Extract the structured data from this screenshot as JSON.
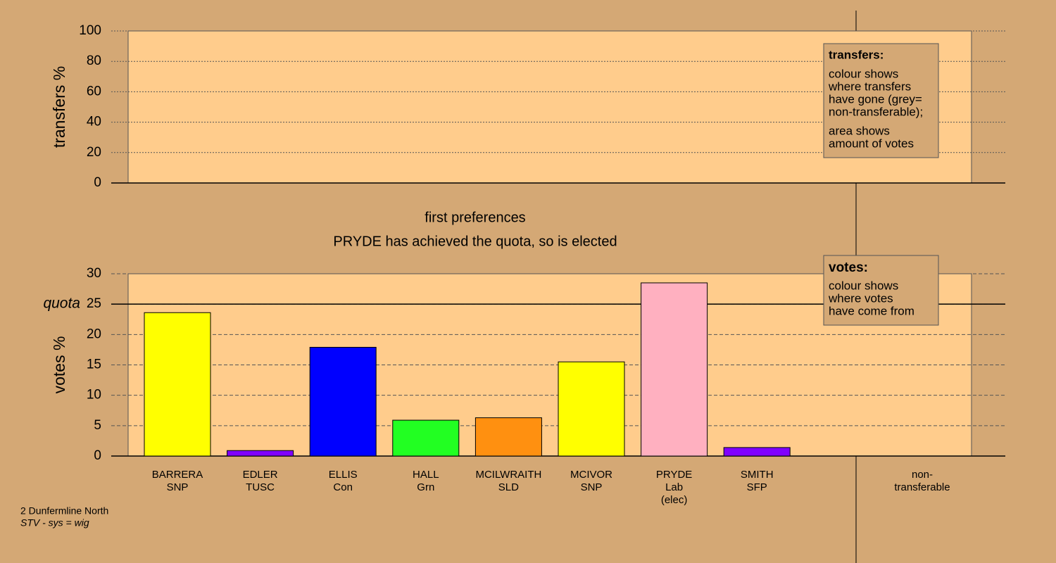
{
  "chart_data": [
    {
      "type": "bar",
      "ylabel": "transfers %",
      "ylim": [
        0,
        100
      ],
      "yticks": [
        0,
        20,
        40,
        60,
        80,
        100
      ],
      "grid": true,
      "legend": {
        "title": "transfers:",
        "paragraphs": [
          [
            "colour shows",
            "where transfers",
            "have gone (grey=",
            "non-transferable);"
          ],
          [
            "area shows",
            "amount of votes"
          ]
        ]
      }
    },
    {
      "type": "bar",
      "title": "first preferences",
      "subtitle": "PRYDE has achieved the quota, so is elected",
      "ylabel": "votes %",
      "ylim": [
        0,
        30
      ],
      "yticks": [
        0,
        5,
        10,
        15,
        20,
        25,
        30
      ],
      "grid": true,
      "quota": {
        "value": 25,
        "label": "quota"
      },
      "categories": [
        [
          "BARRERA",
          "SNP"
        ],
        [
          "EDLER",
          "TUSC"
        ],
        [
          "ELLIS",
          "Con"
        ],
        [
          "HALL",
          "Grn"
        ],
        [
          "MCILWRAITH",
          "SLD"
        ],
        [
          "MCIVOR",
          "SNP"
        ],
        [
          "PRYDE",
          "Lab",
          "(elec)"
        ],
        [
          "SMITH",
          "SFP"
        ],
        [
          "non-",
          "transferable"
        ]
      ],
      "values": [
        23.6,
        0.9,
        17.9,
        5.9,
        6.3,
        15.5,
        28.5,
        1.4,
        null
      ],
      "colors": [
        "#ffff00",
        "#8000ff",
        "#0000ff",
        "#22ff22",
        "#ff9010",
        "#ffff00",
        "#ffb0c0",
        "#8000ff",
        null
      ],
      "legend": {
        "title": "votes:",
        "paragraphs": [
          [
            "colour shows",
            "where votes",
            "have come from"
          ]
        ]
      }
    }
  ],
  "footer": {
    "constituency": "2 Dunfermline North",
    "system": "STV - sys = wig"
  }
}
